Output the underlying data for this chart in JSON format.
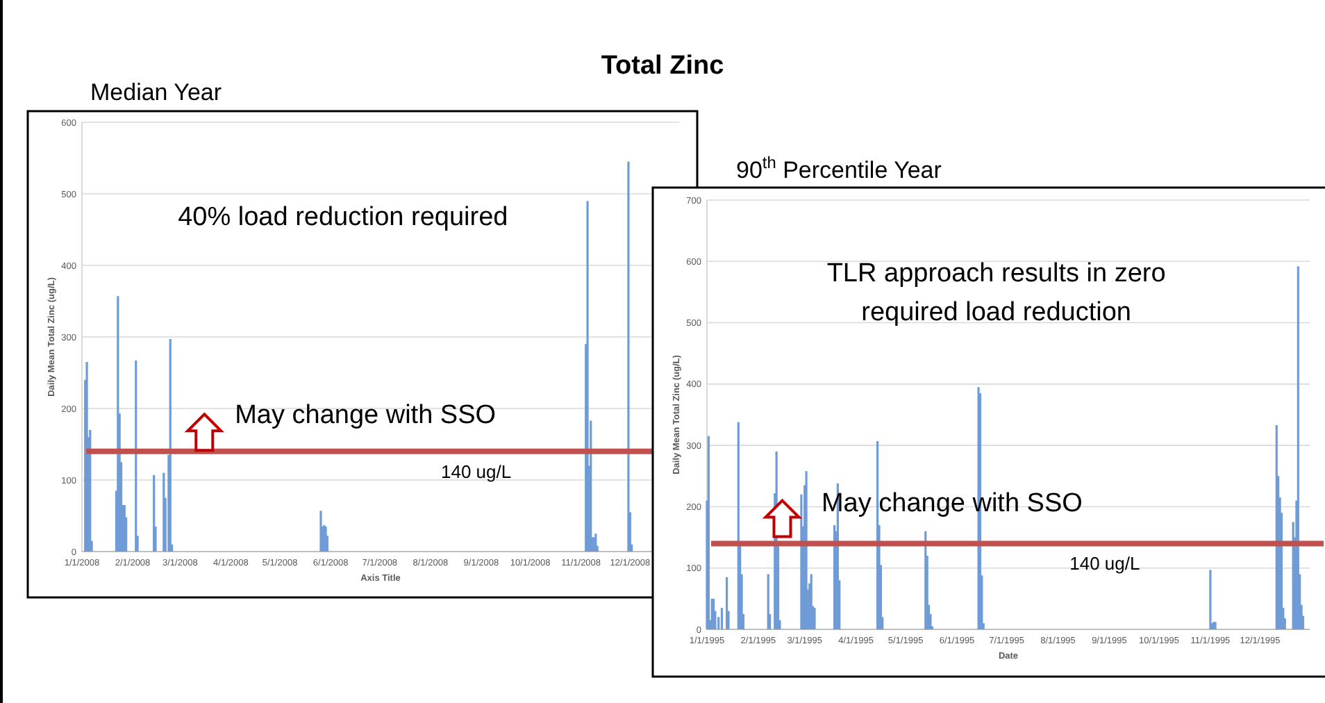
{
  "chart_data": [
    {
      "type": "bar",
      "title": "Total Zinc",
      "subtitle": "Median Year",
      "xlabel": "Axis Title",
      "ylabel": "Daily Mean Total Zinc (ug/L)",
      "color": "#6f9bd6",
      "grid": "y",
      "x": [
        "2008-01-03",
        "2008-01-04",
        "2008-01-05",
        "2008-01-06",
        "2008-01-07",
        "2008-01-22",
        "2008-01-23",
        "2008-01-24",
        "2008-01-25",
        "2008-01-26",
        "2008-01-27",
        "2008-01-28",
        "2008-02-03",
        "2008-02-04",
        "2008-02-14",
        "2008-02-15",
        "2008-02-20",
        "2008-02-21",
        "2008-02-23",
        "2008-02-24",
        "2008-02-25",
        "2008-05-26",
        "2008-05-27",
        "2008-05-28",
        "2008-05-29",
        "2008-05-30",
        "2008-11-04",
        "2008-11-05",
        "2008-11-06",
        "2008-11-07",
        "2008-11-08",
        "2008-11-09",
        "2008-11-10",
        "2008-11-11",
        "2008-11-30",
        "2008-12-01",
        "2008-12-02"
      ],
      "values": [
        240,
        265,
        160,
        170,
        15,
        85,
        357,
        193,
        125,
        65,
        65,
        48,
        267,
        22,
        107,
        35,
        110,
        75,
        135,
        297,
        10,
        57,
        35,
        37,
        35,
        22,
        290,
        490,
        120,
        183,
        20,
        20,
        25,
        8,
        545,
        55,
        10
      ],
      "xlim": [
        "2008-01-01",
        "2008-12-31"
      ],
      "xticks": [
        {
          "value": "2008-01-01",
          "label": "1/1/2008"
        },
        {
          "value": "2008-02-01",
          "label": "2/1/2008"
        },
        {
          "value": "2008-03-01",
          "label": "3/1/2008"
        },
        {
          "value": "2008-04-01",
          "label": "4/1/2008"
        },
        {
          "value": "2008-05-01",
          "label": "5/1/2008"
        },
        {
          "value": "2008-06-01",
          "label": "6/1/2008"
        },
        {
          "value": "2008-07-01",
          "label": "7/1/2008"
        },
        {
          "value": "2008-08-01",
          "label": "8/1/2008"
        },
        {
          "value": "2008-09-01",
          "label": "9/1/2008"
        },
        {
          "value": "2008-10-01",
          "label": "10/1/2008"
        },
        {
          "value": "2008-11-01",
          "label": "11/1/2008"
        },
        {
          "value": "2008-12-01",
          "label": "12/1/2008"
        }
      ],
      "ylim": [
        0,
        600
      ],
      "yticks": [
        0,
        100,
        200,
        300,
        400,
        500,
        600
      ],
      "ref_lines": [
        {
          "axis": "y",
          "value": 140,
          "label": "140 ug/L",
          "color": "#c0504d"
        }
      ],
      "annotations": [
        "40% load reduction required",
        "May change with SSO"
      ]
    },
    {
      "type": "bar",
      "title": "90$^{th}$ Percentile Year",
      "xlabel": "Date",
      "ylabel": "Daily Mean Total Zinc (ug/L)",
      "color": "#6f9bd6",
      "grid": "y",
      "x": [
        "1995-01-01",
        "1995-01-02",
        "1995-01-03",
        "1995-01-04",
        "1995-01-05",
        "1995-01-06",
        "1995-01-08",
        "1995-01-10",
        "1995-01-13",
        "1995-01-14",
        "1995-01-20",
        "1995-01-21",
        "1995-01-22",
        "1995-01-23",
        "1995-02-07",
        "1995-02-08",
        "1995-02-11",
        "1995-02-12",
        "1995-02-13",
        "1995-02-14",
        "1995-02-27",
        "1995-02-28",
        "1995-03-01",
        "1995-03-02",
        "1995-03-03",
        "1995-03-04",
        "1995-03-05",
        "1995-03-06",
        "1995-03-07",
        "1995-03-19",
        "1995-03-20",
        "1995-03-21",
        "1995-03-22",
        "1995-04-14",
        "1995-04-15",
        "1995-04-16",
        "1995-04-17",
        "1995-05-13",
        "1995-05-14",
        "1995-05-15",
        "1995-05-16",
        "1995-05-17",
        "1995-06-14",
        "1995-06-15",
        "1995-06-16",
        "1995-06-17",
        "1995-11-01",
        "1995-11-02",
        "1995-11-03",
        "1995-11-04",
        "1995-12-11",
        "1995-12-12",
        "1995-12-13",
        "1995-12-14",
        "1995-12-15",
        "1995-12-16",
        "1995-12-21",
        "1995-12-22",
        "1995-12-23",
        "1995-12-24",
        "1995-12-25",
        "1995-12-26",
        "1995-12-27"
      ],
      "values": [
        210,
        315,
        15,
        50,
        50,
        30,
        20,
        35,
        85,
        30,
        338,
        140,
        90,
        25,
        90,
        25,
        222,
        290,
        140,
        15,
        220,
        168,
        235,
        258,
        65,
        75,
        90,
        38,
        35,
        170,
        160,
        238,
        80,
        307,
        170,
        105,
        20,
        160,
        120,
        40,
        25,
        5,
        395,
        385,
        88,
        10,
        97,
        10,
        12,
        12,
        333,
        250,
        215,
        190,
        35,
        18,
        175,
        150,
        210,
        592,
        90,
        40,
        22
      ],
      "xlim": [
        "1995-01-01",
        "1995-12-31"
      ],
      "xticks": [
        {
          "value": "1995-01-01",
          "label": "1/1/1995"
        },
        {
          "value": "1995-02-01",
          "label": "2/1/1995"
        },
        {
          "value": "1995-03-01",
          "label": "3/1/1995"
        },
        {
          "value": "1995-04-01",
          "label": "4/1/1995"
        },
        {
          "value": "1995-05-01",
          "label": "5/1/1995"
        },
        {
          "value": "1995-06-01",
          "label": "6/1/1995"
        },
        {
          "value": "1995-07-01",
          "label": "7/1/1995"
        },
        {
          "value": "1995-08-01",
          "label": "8/1/1995"
        },
        {
          "value": "1995-09-01",
          "label": "9/1/1995"
        },
        {
          "value": "1995-10-01",
          "label": "10/1/1995"
        },
        {
          "value": "1995-11-01",
          "label": "11/1/1995"
        },
        {
          "value": "1995-12-01",
          "label": "12/1/1995"
        }
      ],
      "ylim": [
        0,
        700
      ],
      "yticks": [
        0,
        100,
        200,
        300,
        400,
        500,
        600,
        700
      ],
      "ref_lines": [
        {
          "axis": "y",
          "value": 140,
          "label": "140 ug/L",
          "color": "#c0504d"
        }
      ],
      "annotations": [
        "TLR approach results in zero\nrequired load reduction",
        "May change with SSO"
      ]
    }
  ]
}
